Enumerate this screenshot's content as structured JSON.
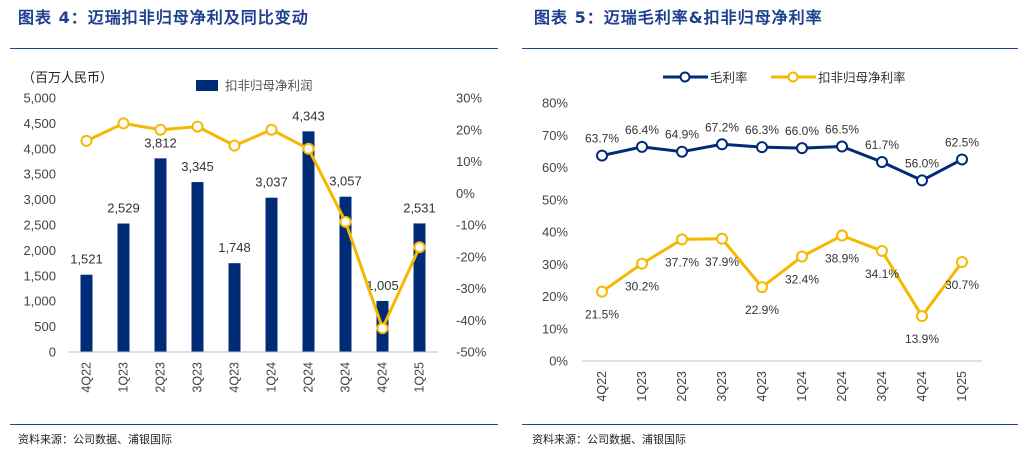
{
  "colors": {
    "navy": "#002c77",
    "gold": "#f5b800",
    "title_blue": "#1f3f8f",
    "grid": "#d9d9d9"
  },
  "left": {
    "title": "图表 4：迈瑞扣非归母净利及同比变动",
    "source": "资料来源：公司数据、浦银国际",
    "unit_label": "（百万人民币）"
  },
  "right": {
    "title": "图表 5：迈瑞毛利率&扣非归母净利率",
    "source": "资料来源：公司数据、浦银国际"
  },
  "chart_data": [
    {
      "type": "bar",
      "categories": [
        "4Q22",
        "1Q23",
        "2Q23",
        "3Q23",
        "4Q23",
        "1Q24",
        "2Q24",
        "3Q24",
        "4Q24",
        "1Q25"
      ],
      "series": [
        {
          "name": "扣非归母净利润",
          "type": "bar",
          "axis": "left",
          "values": [
            1521,
            2529,
            3812,
            3345,
            1748,
            3037,
            4343,
            3057,
            1005,
            2531
          ]
        },
        {
          "type": "line",
          "axis": "right",
          "values": [
            16.5,
            22,
            20,
            21,
            15,
            20,
            14,
            -9,
            -42.5,
            -17
          ]
        }
      ],
      "ylim": [
        0,
        5000
      ],
      "y_ticks": [
        "0",
        "500",
        "1,000",
        "1,500",
        "2,000",
        "2,500",
        "3,000",
        "3,500",
        "4,000",
        "4,500",
        "5,000"
      ],
      "y2lim": [
        -50,
        30
      ],
      "y2_ticks": [
        "-50%",
        "-40%",
        "-30%",
        "-20%",
        "-10%",
        "0%",
        "10%",
        "20%",
        "30%"
      ],
      "bar_labels": [
        "1,521",
        "2,529",
        "3,812",
        "3,345",
        "1,748",
        "3,037",
        "4,343",
        "3,057",
        "1,005",
        "2,531"
      ],
      "legend_position": "top",
      "grid": false
    },
    {
      "type": "line",
      "categories": [
        "4Q22",
        "1Q23",
        "2Q23",
        "3Q23",
        "4Q23",
        "1Q24",
        "2Q24",
        "3Q24",
        "4Q24",
        "1Q25"
      ],
      "series": [
        {
          "name": "毛利率",
          "values": [
            63.7,
            66.4,
            64.9,
            67.2,
            66.3,
            66.0,
            66.5,
            61.7,
            56.0,
            62.5
          ],
          "labels": [
            "63.7%",
            "66.4%",
            "64.9%",
            "67.2%",
            "66.3%",
            "66.0%",
            "66.5%",
            "61.7%",
            "56.0%",
            "62.5%"
          ]
        },
        {
          "name": "扣非归母净利率",
          "values": [
            21.5,
            30.2,
            37.7,
            37.9,
            22.9,
            32.4,
            38.9,
            34.1,
            13.9,
            30.7
          ],
          "labels": [
            "21.5%",
            "30.2%",
            "37.7%",
            "37.9%",
            "22.9%",
            "32.4%",
            "38.9%",
            "34.1%",
            "13.9%",
            "30.7%"
          ]
        }
      ],
      "ylim": [
        0,
        80
      ],
      "y_ticks": [
        "0%",
        "10%",
        "20%",
        "30%",
        "40%",
        "50%",
        "60%",
        "70%",
        "80%"
      ],
      "legend_position": "top",
      "grid": false
    }
  ]
}
